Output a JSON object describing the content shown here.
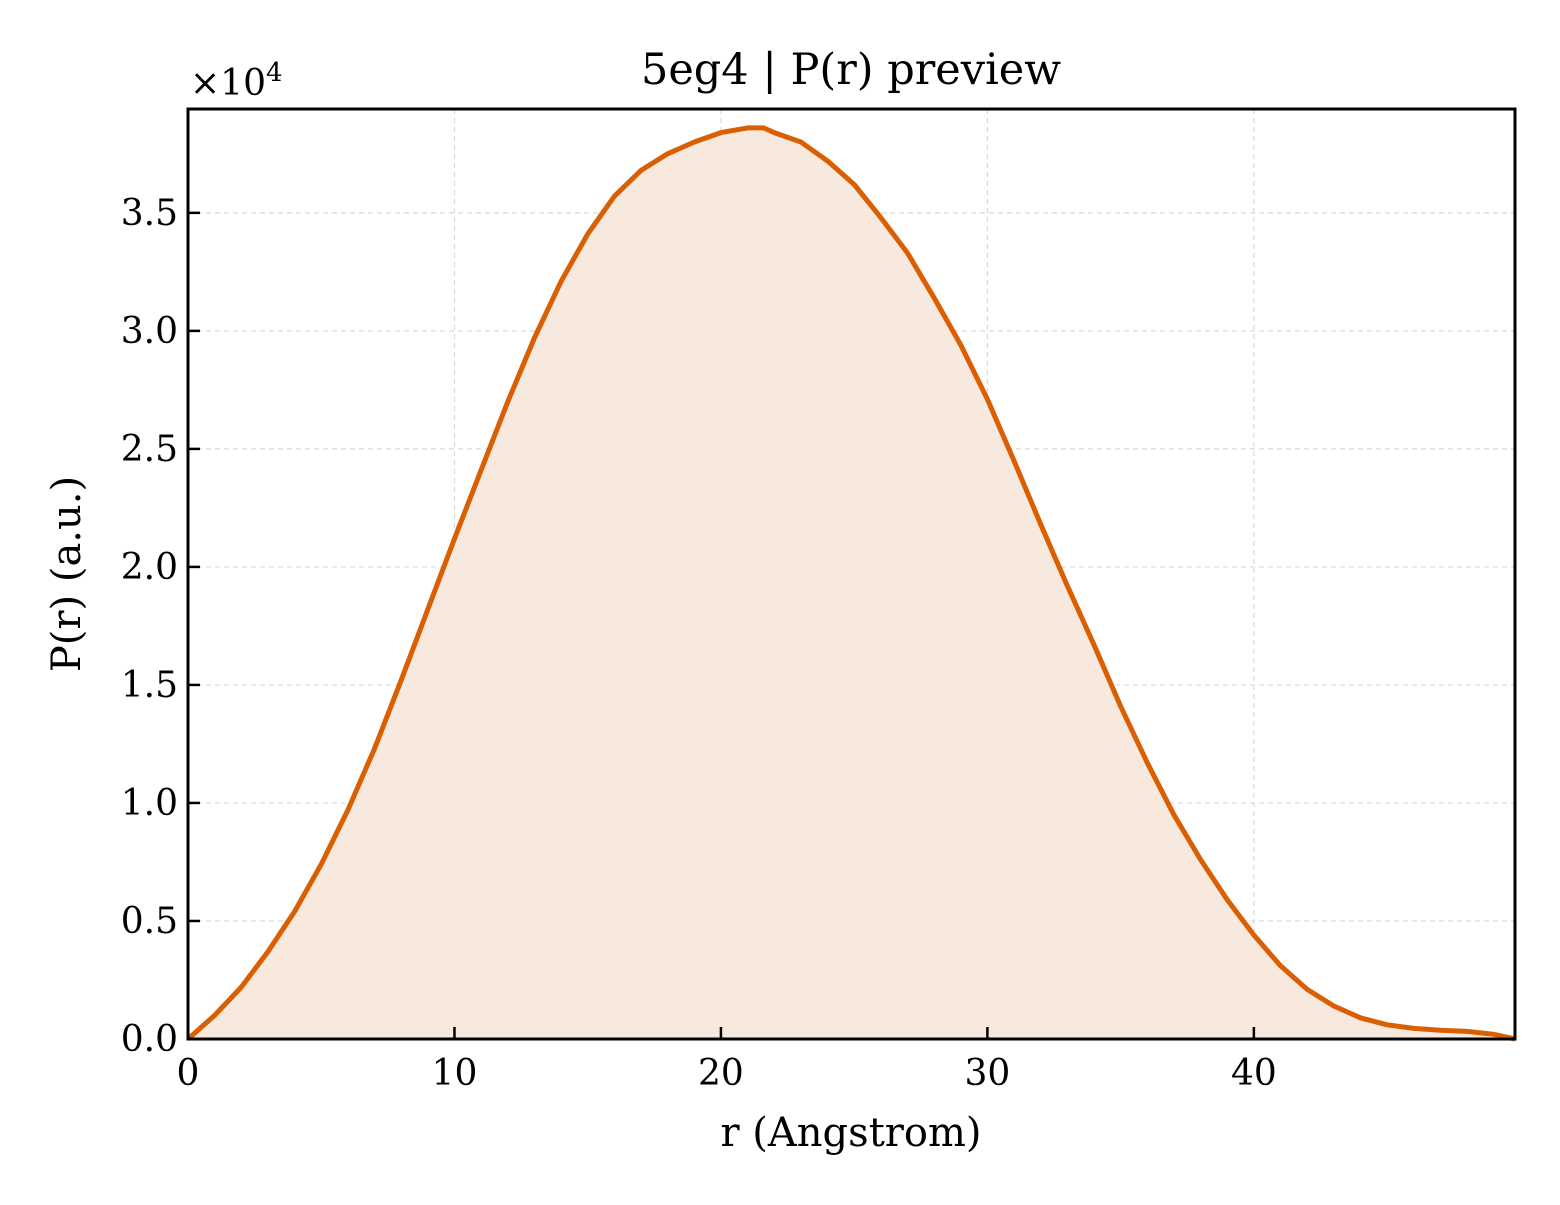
{
  "chart_data": {
    "type": "area",
    "title": "5eg4 | P(r) preview",
    "xlabel": "r (Angstrom)",
    "ylabel": "P(r) (a.u.)",
    "y_multiplier_label": "×10",
    "y_multiplier_exponent": "4",
    "xlim": [
      0,
      49.8
    ],
    "ylim": [
      0,
      3.94
    ],
    "x_ticks": [
      0,
      10,
      20,
      30,
      40
    ],
    "x_tick_labels": [
      "0",
      "10",
      "20",
      "30",
      "40"
    ],
    "y_ticks": [
      0,
      0.5,
      1.0,
      1.5,
      2.0,
      2.5,
      3.0,
      3.5
    ],
    "y_tick_labels": [
      "0.0",
      "0.5",
      "1.0",
      "1.5",
      "2.0",
      "2.5",
      "3.0",
      "3.5"
    ],
    "grid": true,
    "legend": "none",
    "colors": {
      "line": "#d95f02",
      "fill": "#f8e9df",
      "grid": "#d9d9d9",
      "axes": "#000000"
    },
    "series": [
      {
        "x": [
          0,
          1,
          2,
          3,
          4,
          5,
          6,
          7,
          8,
          9,
          10,
          11,
          12,
          13,
          14,
          15,
          16,
          17,
          18,
          19,
          20,
          21,
          21.6,
          22,
          23,
          24,
          25,
          26,
          27,
          28,
          29,
          30,
          31,
          32,
          33,
          34,
          35,
          36,
          37,
          38,
          39,
          40,
          41,
          42,
          43,
          44,
          45,
          46,
          47,
          48,
          49,
          49.8
        ],
        "y": [
          0.0,
          0.1,
          0.22,
          0.37,
          0.54,
          0.74,
          0.97,
          1.23,
          1.52,
          1.82,
          2.12,
          2.41,
          2.7,
          2.97,
          3.21,
          3.41,
          3.57,
          3.68,
          3.75,
          3.8,
          3.84,
          3.86,
          3.86,
          3.84,
          3.8,
          3.72,
          3.62,
          3.48,
          3.33,
          3.14,
          2.94,
          2.71,
          2.45,
          2.18,
          1.92,
          1.67,
          1.41,
          1.17,
          0.95,
          0.76,
          0.59,
          0.44,
          0.31,
          0.21,
          0.14,
          0.09,
          0.06,
          0.045,
          0.037,
          0.032,
          0.02,
          0.0
        ]
      }
    ]
  }
}
